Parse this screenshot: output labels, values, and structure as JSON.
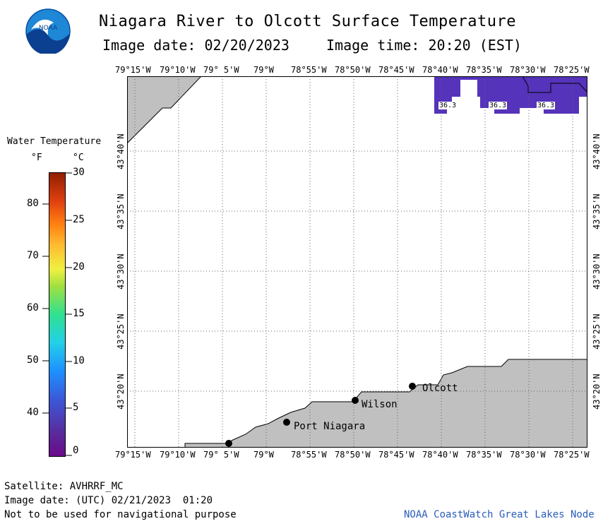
{
  "header": {
    "title": "Niagara River to Olcott Surface Temperature",
    "image_date": "Image date: 02/20/2023",
    "image_time": "Image time: 20:20 (EST)"
  },
  "logo": {
    "text": "NOAA"
  },
  "legend": {
    "title": "Water Temperature",
    "unit_f": "°F",
    "unit_c": "°C",
    "f_ticks": [
      "80",
      "70",
      "60",
      "50",
      "40"
    ],
    "c_ticks": [
      "30",
      "25",
      "20",
      "15",
      "10",
      "5",
      "0"
    ]
  },
  "map": {
    "lon_labels": [
      "79°15'W",
      "79°10'W",
      "79° 5'W",
      "79°W",
      "78°55'W",
      "78°50'W",
      "78°45'W",
      "78°40'W",
      "78°35'W",
      "78°30'W",
      "78°25'W"
    ],
    "lat_labels": [
      "43°40'N",
      "43°35'N",
      "43°30'N",
      "43°25'N",
      "43°20'N"
    ],
    "cities": [
      "Port Niagara",
      "Wilson",
      "Olcott"
    ],
    "temp_values": [
      "36.3",
      "36.3",
      "36.3"
    ],
    "colors": {
      "land": "#c0c0c0",
      "water_temp": "#5533bb",
      "grid": "#666666"
    }
  },
  "footer": {
    "satellite": "Satellite: AVHRRF_MC",
    "utc_date": "Image date: (UTC) 02/21/2023  01:20",
    "disclaimer": "Not to be used for navigational purpose",
    "credit": "NOAA CoastWatch Great Lakes Node"
  }
}
